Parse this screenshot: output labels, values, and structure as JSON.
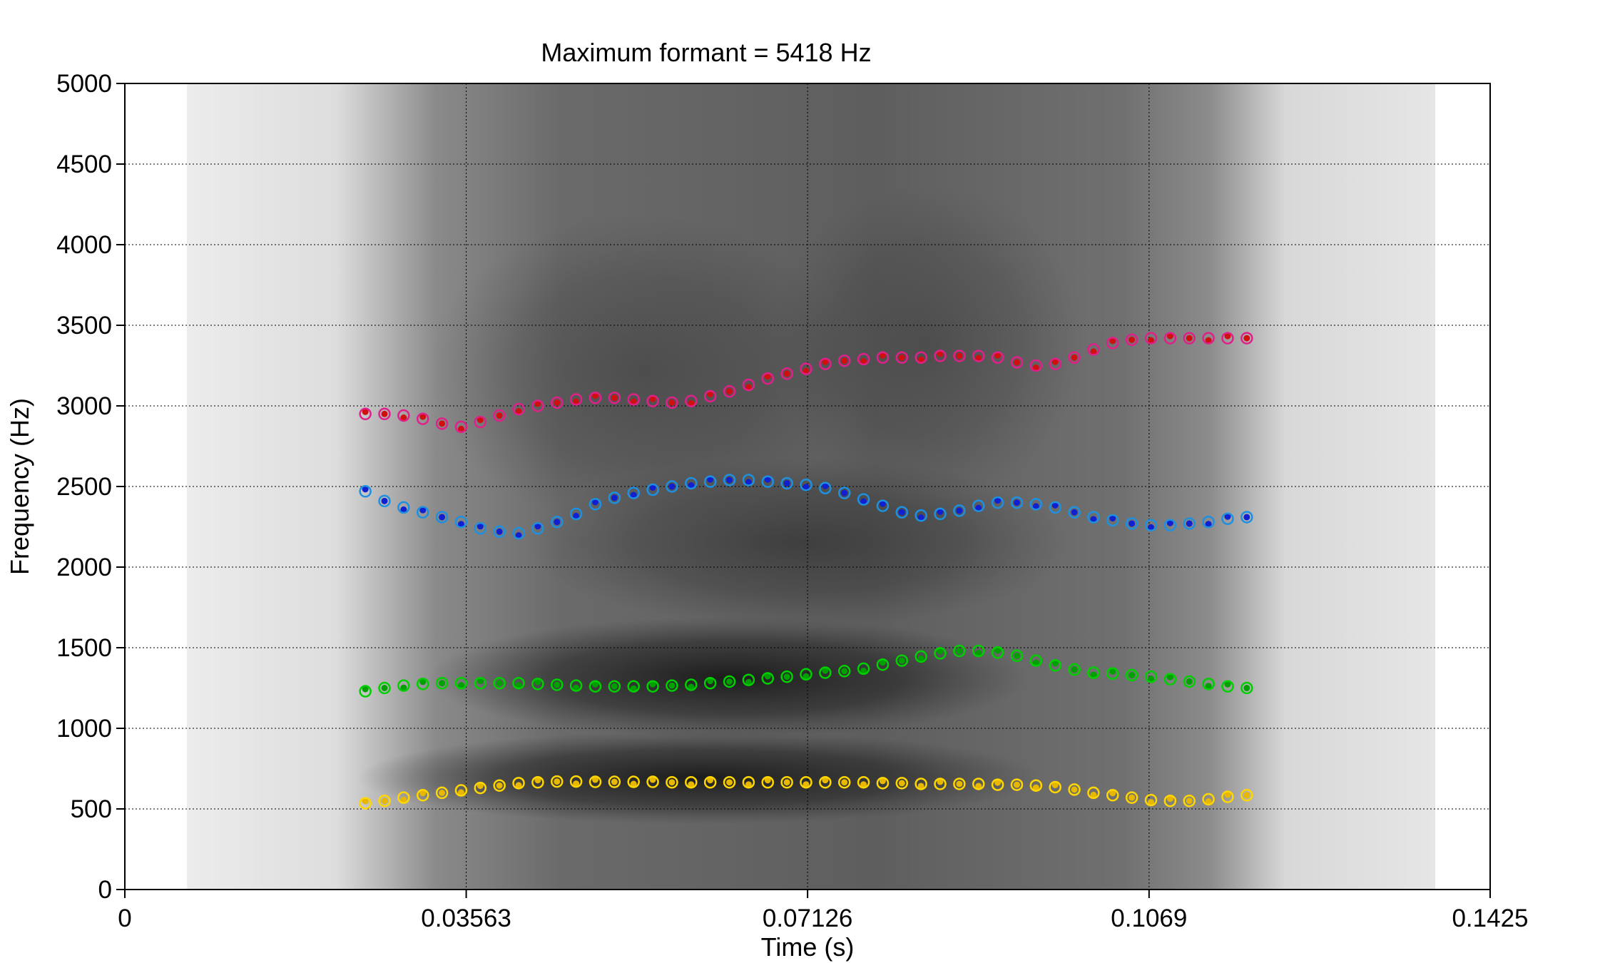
{
  "chart_data": {
    "type": "scatter",
    "title": "Maximum formant = 5418 Hz",
    "xlabel": "Time (s)",
    "ylabel": "Frequency (Hz)",
    "xlim": [
      0,
      0.1425
    ],
    "ylim": [
      0,
      5000
    ],
    "x_ticks": [
      "0",
      "0.03563",
      "0.07126",
      "0.1069",
      "0.1425"
    ],
    "x_tick_values": [
      0,
      0.03563,
      0.07126,
      0.1069,
      0.1425
    ],
    "y_ticks": [
      "0",
      "500",
      "1000",
      "1500",
      "2000",
      "2500",
      "3000",
      "3500",
      "4000",
      "4500",
      "5000"
    ],
    "y_tick_values": [
      0,
      500,
      1000,
      1500,
      2000,
      2500,
      3000,
      3500,
      4000,
      4500,
      5000
    ],
    "grid": true,
    "background": "grayscale spectrogram",
    "x": [
      0.0251,
      0.0271,
      0.0291,
      0.0311,
      0.0331,
      0.0351,
      0.0371,
      0.0391,
      0.0411,
      0.0431,
      0.0451,
      0.0471,
      0.0491,
      0.0511,
      0.0531,
      0.0551,
      0.0571,
      0.0591,
      0.0611,
      0.0631,
      0.0651,
      0.0671,
      0.0691,
      0.0711,
      0.0731,
      0.0751,
      0.0771,
      0.0791,
      0.0811,
      0.0831,
      0.0851,
      0.0871,
      0.0891,
      0.0911,
      0.0931,
      0.0951,
      0.0971,
      0.0991,
      0.1011,
      0.1031,
      0.1051,
      0.1071,
      0.1091,
      0.1111,
      0.1131,
      0.1151,
      0.1171
    ],
    "series": [
      {
        "color": "#ffd700",
        "values": [
          535,
          550,
          570,
          585,
          600,
          615,
          630,
          645,
          660,
          665,
          670,
          670,
          668,
          668,
          668,
          668,
          665,
          665,
          665,
          665,
          665,
          665,
          665,
          665,
          665,
          665,
          665,
          660,
          660,
          655,
          655,
          655,
          655,
          650,
          650,
          645,
          635,
          620,
          600,
          585,
          570,
          555,
          550,
          550,
          560,
          575,
          585
        ]
      },
      {
        "color": "#00d000",
        "values": [
          1230,
          1250,
          1265,
          1275,
          1280,
          1280,
          1280,
          1280,
          1280,
          1275,
          1270,
          1265,
          1260,
          1260,
          1260,
          1260,
          1265,
          1270,
          1280,
          1290,
          1300,
          1310,
          1320,
          1335,
          1345,
          1355,
          1370,
          1395,
          1420,
          1445,
          1465,
          1480,
          1480,
          1470,
          1450,
          1420,
          1390,
          1365,
          1345,
          1340,
          1330,
          1320,
          1305,
          1290,
          1275,
          1260,
          1250
        ]
      },
      {
        "color": "#1e90e0",
        "values": [
          2470,
          2410,
          2370,
          2340,
          2310,
          2280,
          2240,
          2220,
          2210,
          2240,
          2280,
          2330,
          2390,
          2430,
          2460,
          2480,
          2500,
          2520,
          2530,
          2540,
          2540,
          2530,
          2520,
          2510,
          2490,
          2460,
          2420,
          2380,
          2340,
          2320,
          2330,
          2350,
          2380,
          2400,
          2400,
          2390,
          2370,
          2340,
          2310,
          2290,
          2270,
          2260,
          2260,
          2270,
          2280,
          2300,
          2310
        ]
      },
      {
        "color": "#e0208a",
        "values": [
          2950,
          2950,
          2940,
          2920,
          2890,
          2870,
          2900,
          2940,
          2980,
          3000,
          3020,
          3040,
          3050,
          3050,
          3040,
          3030,
          3020,
          3030,
          3060,
          3090,
          3130,
          3170,
          3200,
          3230,
          3260,
          3280,
          3290,
          3300,
          3300,
          3300,
          3310,
          3310,
          3310,
          3300,
          3270,
          3250,
          3260,
          3300,
          3350,
          3390,
          3410,
          3420,
          3420,
          3420,
          3420,
          3420,
          3420
        ]
      }
    ]
  }
}
